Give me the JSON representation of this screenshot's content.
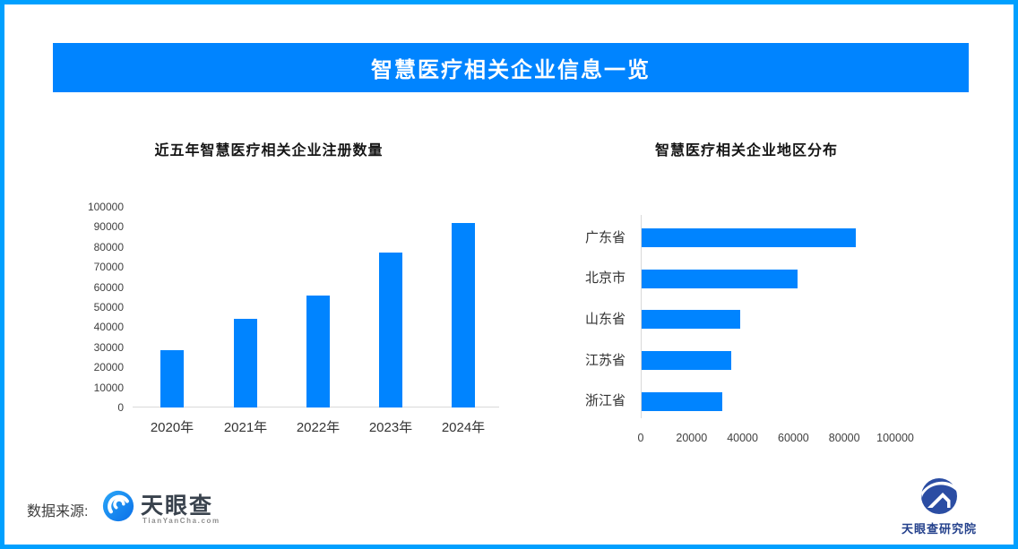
{
  "banner": {
    "title": "智慧医疗相关企业信息一览"
  },
  "footer": {
    "source_label": "数据来源:",
    "brand_name": "天眼查",
    "brand_domain": "TianYanCha.com",
    "research_name": "天眼查研究院"
  },
  "colors": {
    "accent_blue": "#0084ff",
    "frame_blue": "#00a0ff",
    "axis_gray": "#d9d9d9",
    "text_dark": "#333333",
    "brand_navy": "#24418c"
  },
  "chart_data": [
    {
      "type": "bar",
      "title": "近五年智慧医疗相关企业注册数量",
      "categories": [
        "2020年",
        "2021年",
        "2022年",
        "2023年",
        "2024年"
      ],
      "values": [
        28600,
        44000,
        55600,
        77300,
        91900
      ],
      "ylim": [
        0,
        100000
      ],
      "yticks": [
        "100000",
        "90000",
        "80000",
        "70000",
        "60000",
        "50000",
        "40000",
        "30000",
        "20000",
        "10000",
        "0"
      ],
      "bar_color": "#0084ff",
      "grid": false,
      "legend": "none"
    },
    {
      "type": "horizontal-bar",
      "title": "智慧医疗相关企业地区分布",
      "categories": [
        "广东省",
        "北京市",
        "山东省",
        "江苏省",
        "浙江省"
      ],
      "values": [
        84000,
        61400,
        38800,
        35300,
        31800
      ],
      "xlim": [
        0,
        100000
      ],
      "xticks": [
        "0",
        "20000",
        "40000",
        "60000",
        "80000",
        "100000"
      ],
      "bar_color": "#0084ff",
      "grid": false,
      "legend": "none"
    }
  ]
}
